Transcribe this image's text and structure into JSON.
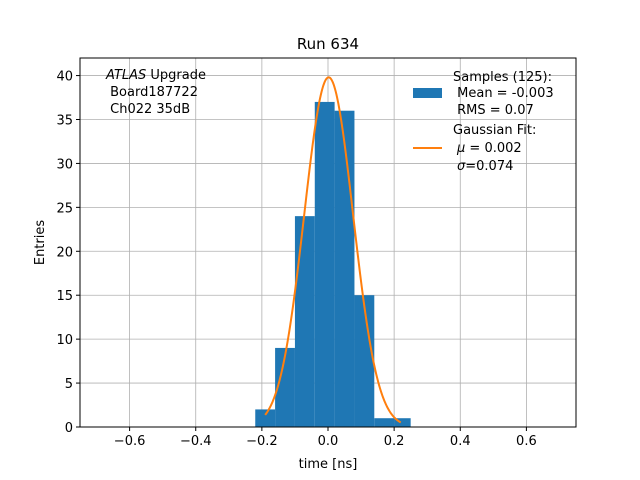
{
  "chart_data": {
    "type": "bar",
    "title": "Run 634",
    "xlabel": "time [ns]",
    "ylabel": "Entries",
    "xlim": [
      -0.75,
      0.75
    ],
    "ylim": [
      0,
      42
    ],
    "grid": true,
    "xticks": [
      -0.6,
      -0.4,
      -0.2,
      0.0,
      0.2,
      0.4,
      0.6
    ],
    "xtick_labels": [
      "−0.6",
      "−0.4",
      "−0.2",
      "0.0",
      "0.2",
      "0.4",
      "0.6"
    ],
    "yticks": [
      0,
      5,
      10,
      15,
      20,
      25,
      30,
      35,
      40
    ],
    "ytick_labels": [
      "0",
      "5",
      "10",
      "15",
      "20",
      "25",
      "30",
      "35",
      "40"
    ],
    "histogram": {
      "name": "Samples (125):",
      "color": "#1f77b4",
      "bin_edges": [
        -0.22,
        -0.16,
        -0.1,
        -0.04,
        0.02,
        0.08,
        0.14,
        0.2,
        0.25
      ],
      "counts": [
        2,
        9,
        24,
        37,
        36,
        15,
        1,
        1
      ]
    },
    "fit": {
      "name": "Gaussian Fit:",
      "color": "#ff7f0e",
      "mu": 0.002,
      "sigma": 0.074,
      "amplitude": 39.8,
      "x_range": [
        -0.19,
        0.22
      ]
    },
    "legend": {
      "placement": "upper right",
      "samples": {
        "title": "Samples (125):",
        "mean": " Mean = -0.003",
        "rms": " RMS = 0.07"
      },
      "gaussian": {
        "title": "Gaussian Fit:",
        "mu_symbol": "μ",
        "mu_value": " = 0.002",
        "sigma_symbol": "σ",
        "sigma_value": "=0.074"
      }
    },
    "annotation": {
      "experiment": "ATLAS",
      "experiment_suffix": " Upgrade",
      "board": " Board187722",
      "channel": " Ch022 35dB"
    }
  }
}
